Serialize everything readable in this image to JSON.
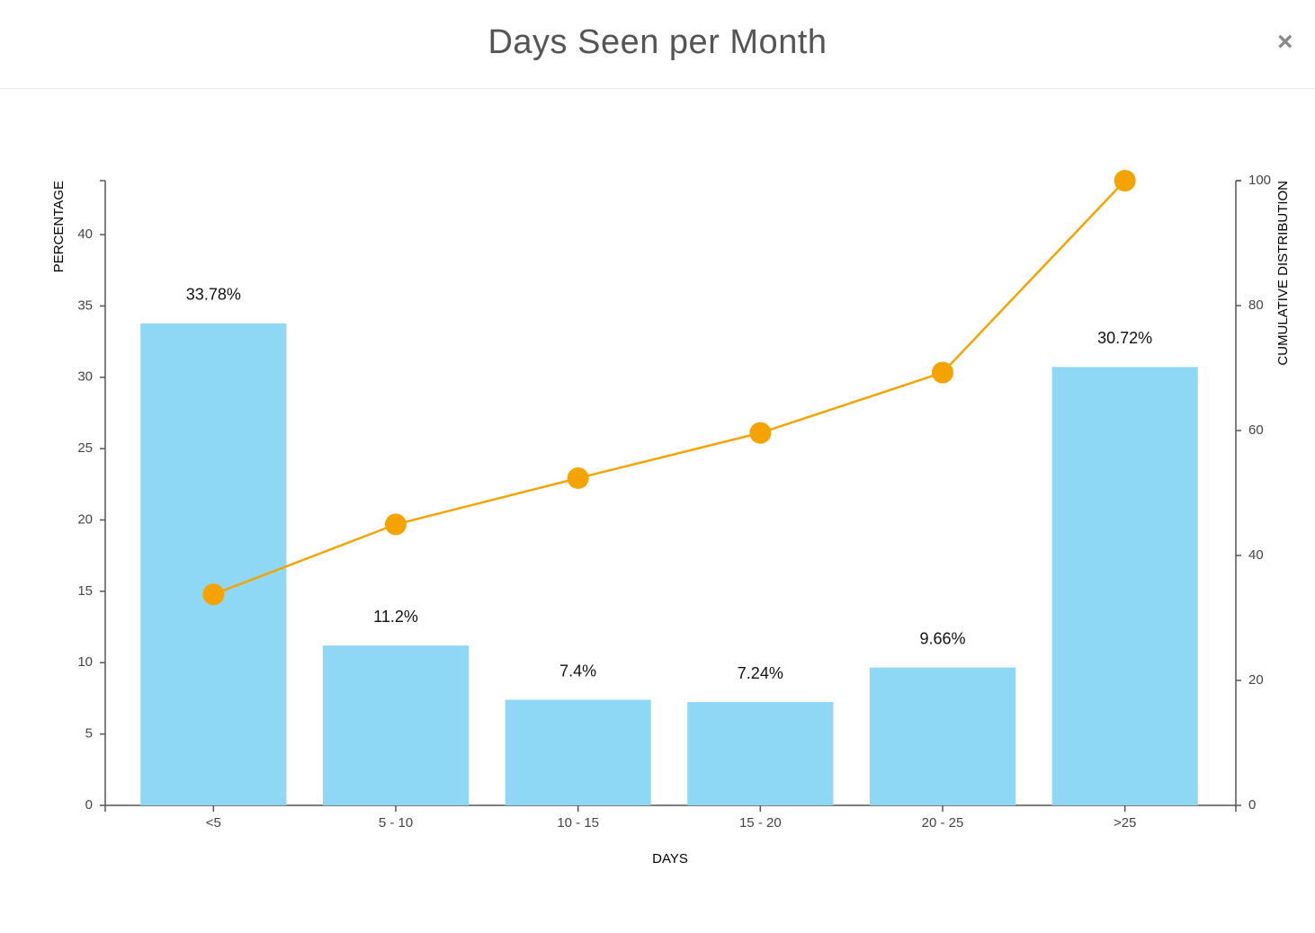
{
  "modal": {
    "close": "×"
  },
  "chart_data": {
    "type": "bar",
    "title": "Days Seen per Month",
    "x_label": "DAYS",
    "y_label": "PERCENTAGE",
    "y2_label": "CUMULATIVE DISTRIBUTION",
    "categories": [
      "<5",
      "5 - 10",
      "10 - 15",
      "15 - 20",
      "20 - 25",
      ">25"
    ],
    "series": [
      {
        "type": "bar",
        "color": "#8ed8f6",
        "values": [
          33.78,
          11.2,
          7.4,
          7.24,
          9.66,
          30.72
        ],
        "value_labels": [
          "33.78%",
          "11.2%",
          "7.4%",
          "7.24%",
          "9.66%",
          "30.72%"
        ]
      },
      {
        "type": "line",
        "axis": "y2",
        "color": "#f5a300",
        "values": [
          33.78,
          44.98,
          52.38,
          59.62,
          69.28,
          100
        ]
      }
    ],
    "ylim": [
      0,
      43.78
    ],
    "yticks": [
      0,
      5,
      10,
      15,
      20,
      25,
      30,
      35,
      40
    ],
    "y2lim": [
      0,
      100
    ],
    "y2ticks": [
      0,
      20,
      40,
      60,
      80,
      100
    ],
    "grid": false
  }
}
